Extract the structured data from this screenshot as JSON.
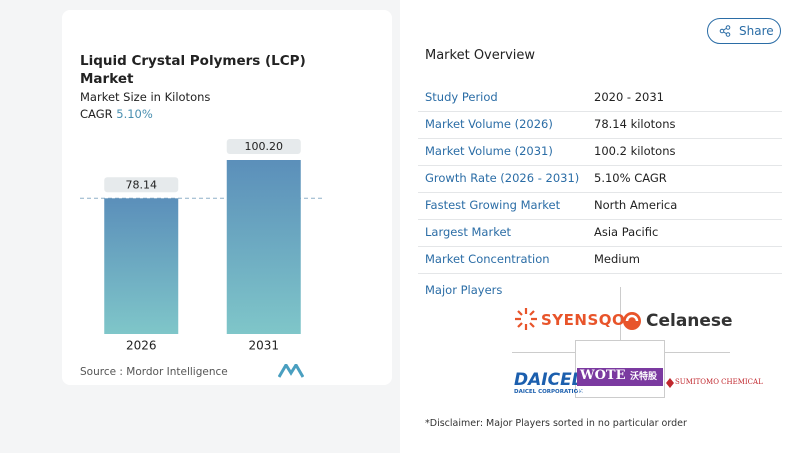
{
  "chart_data": {
    "type": "bar",
    "title": "Liquid Crystal Polymers (LCP) Market",
    "subtitle": "Market Size in Kilotons",
    "cagr_label": "CAGR",
    "cagr_value": "5.10%",
    "categories": [
      "2026",
      "2031"
    ],
    "values": [
      78.14,
      100.2
    ],
    "value_labels": [
      "78.14",
      "100.20"
    ],
    "color_top": "#5b8fba",
    "color_bottom": "#7fc6c9",
    "source": "Source :  Mordor Intelligence"
  },
  "share": "Share",
  "overview": {
    "title": "Market Overview",
    "rows": [
      [
        "Study Period",
        "2020 - 2031"
      ],
      [
        "Market Volume (2026)",
        "78.14 kilotons"
      ],
      [
        "Market Volume (2031)",
        "100.2 kilotons"
      ],
      [
        "Growth Rate (2026 - 2031)",
        "5.10% CAGR"
      ],
      [
        "Fastest Growing Market",
        "North America"
      ],
      [
        "Largest Market",
        "Asia Pacific"
      ],
      [
        "Market Concentration",
        "Medium"
      ]
    ]
  },
  "players": {
    "title": "Major Players",
    "logos": [
      "SYENSQO",
      "Celanese",
      "DAICEL",
      "DAICEL CORPORATION",
      "WOTE",
      "沃特股份",
      "SUMITOMO CHEMICAL"
    ],
    "disclaimer": "*Disclaimer: Major Players sorted in no particular order"
  }
}
